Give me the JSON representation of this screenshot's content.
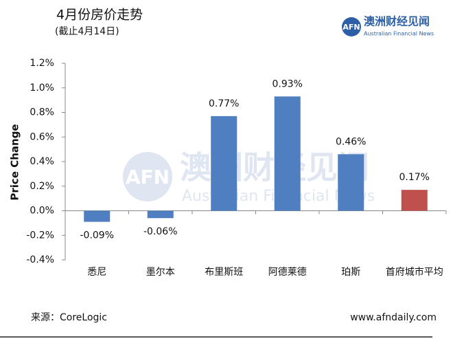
{
  "chart_data": {
    "type": "bar",
    "title": "4月份房价走势",
    "subtitle": "(截止4月14日)",
    "y_label": "Price Change",
    "categories": [
      "悉尼",
      "墨尔本",
      "布里斯班",
      "阿德莱德",
      "珀斯",
      "首府城市平均"
    ],
    "values": [
      -0.09,
      -0.06,
      0.77,
      0.93,
      0.46,
      0.17
    ],
    "value_labels": [
      "-0.09%",
      "-0.06%",
      "0.77%",
      "0.93%",
      "0.46%",
      "0.17%"
    ],
    "colors": [
      "#4f7fc0",
      "#4f7fc0",
      "#4f7fc0",
      "#4f7fc0",
      "#4f7fc0",
      "#c0504d"
    ],
    "ylim": [
      -0.4,
      1.2
    ],
    "yticks": [
      {
        "value": -0.4,
        "label": "-0.4%"
      },
      {
        "value": -0.2,
        "label": "-0.2%"
      },
      {
        "value": 0,
        "label": "0.0%"
      },
      {
        "value": 0.2,
        "label": "0.2%"
      },
      {
        "value": 0.4,
        "label": "0.4%"
      },
      {
        "value": 0.6,
        "label": "0.6%"
      },
      {
        "value": 0.8,
        "label": "0.8%"
      },
      {
        "value": 1.0,
        "label": "1.0%"
      },
      {
        "value": 1.2,
        "label": "1.2%"
      }
    ],
    "grid": false,
    "source": "来源：CoreLogic",
    "website": "www.afndaily.com",
    "logo": {
      "mark": "AFN",
      "name": "澳洲财经见闻",
      "english": "Australian Financial News"
    }
  }
}
